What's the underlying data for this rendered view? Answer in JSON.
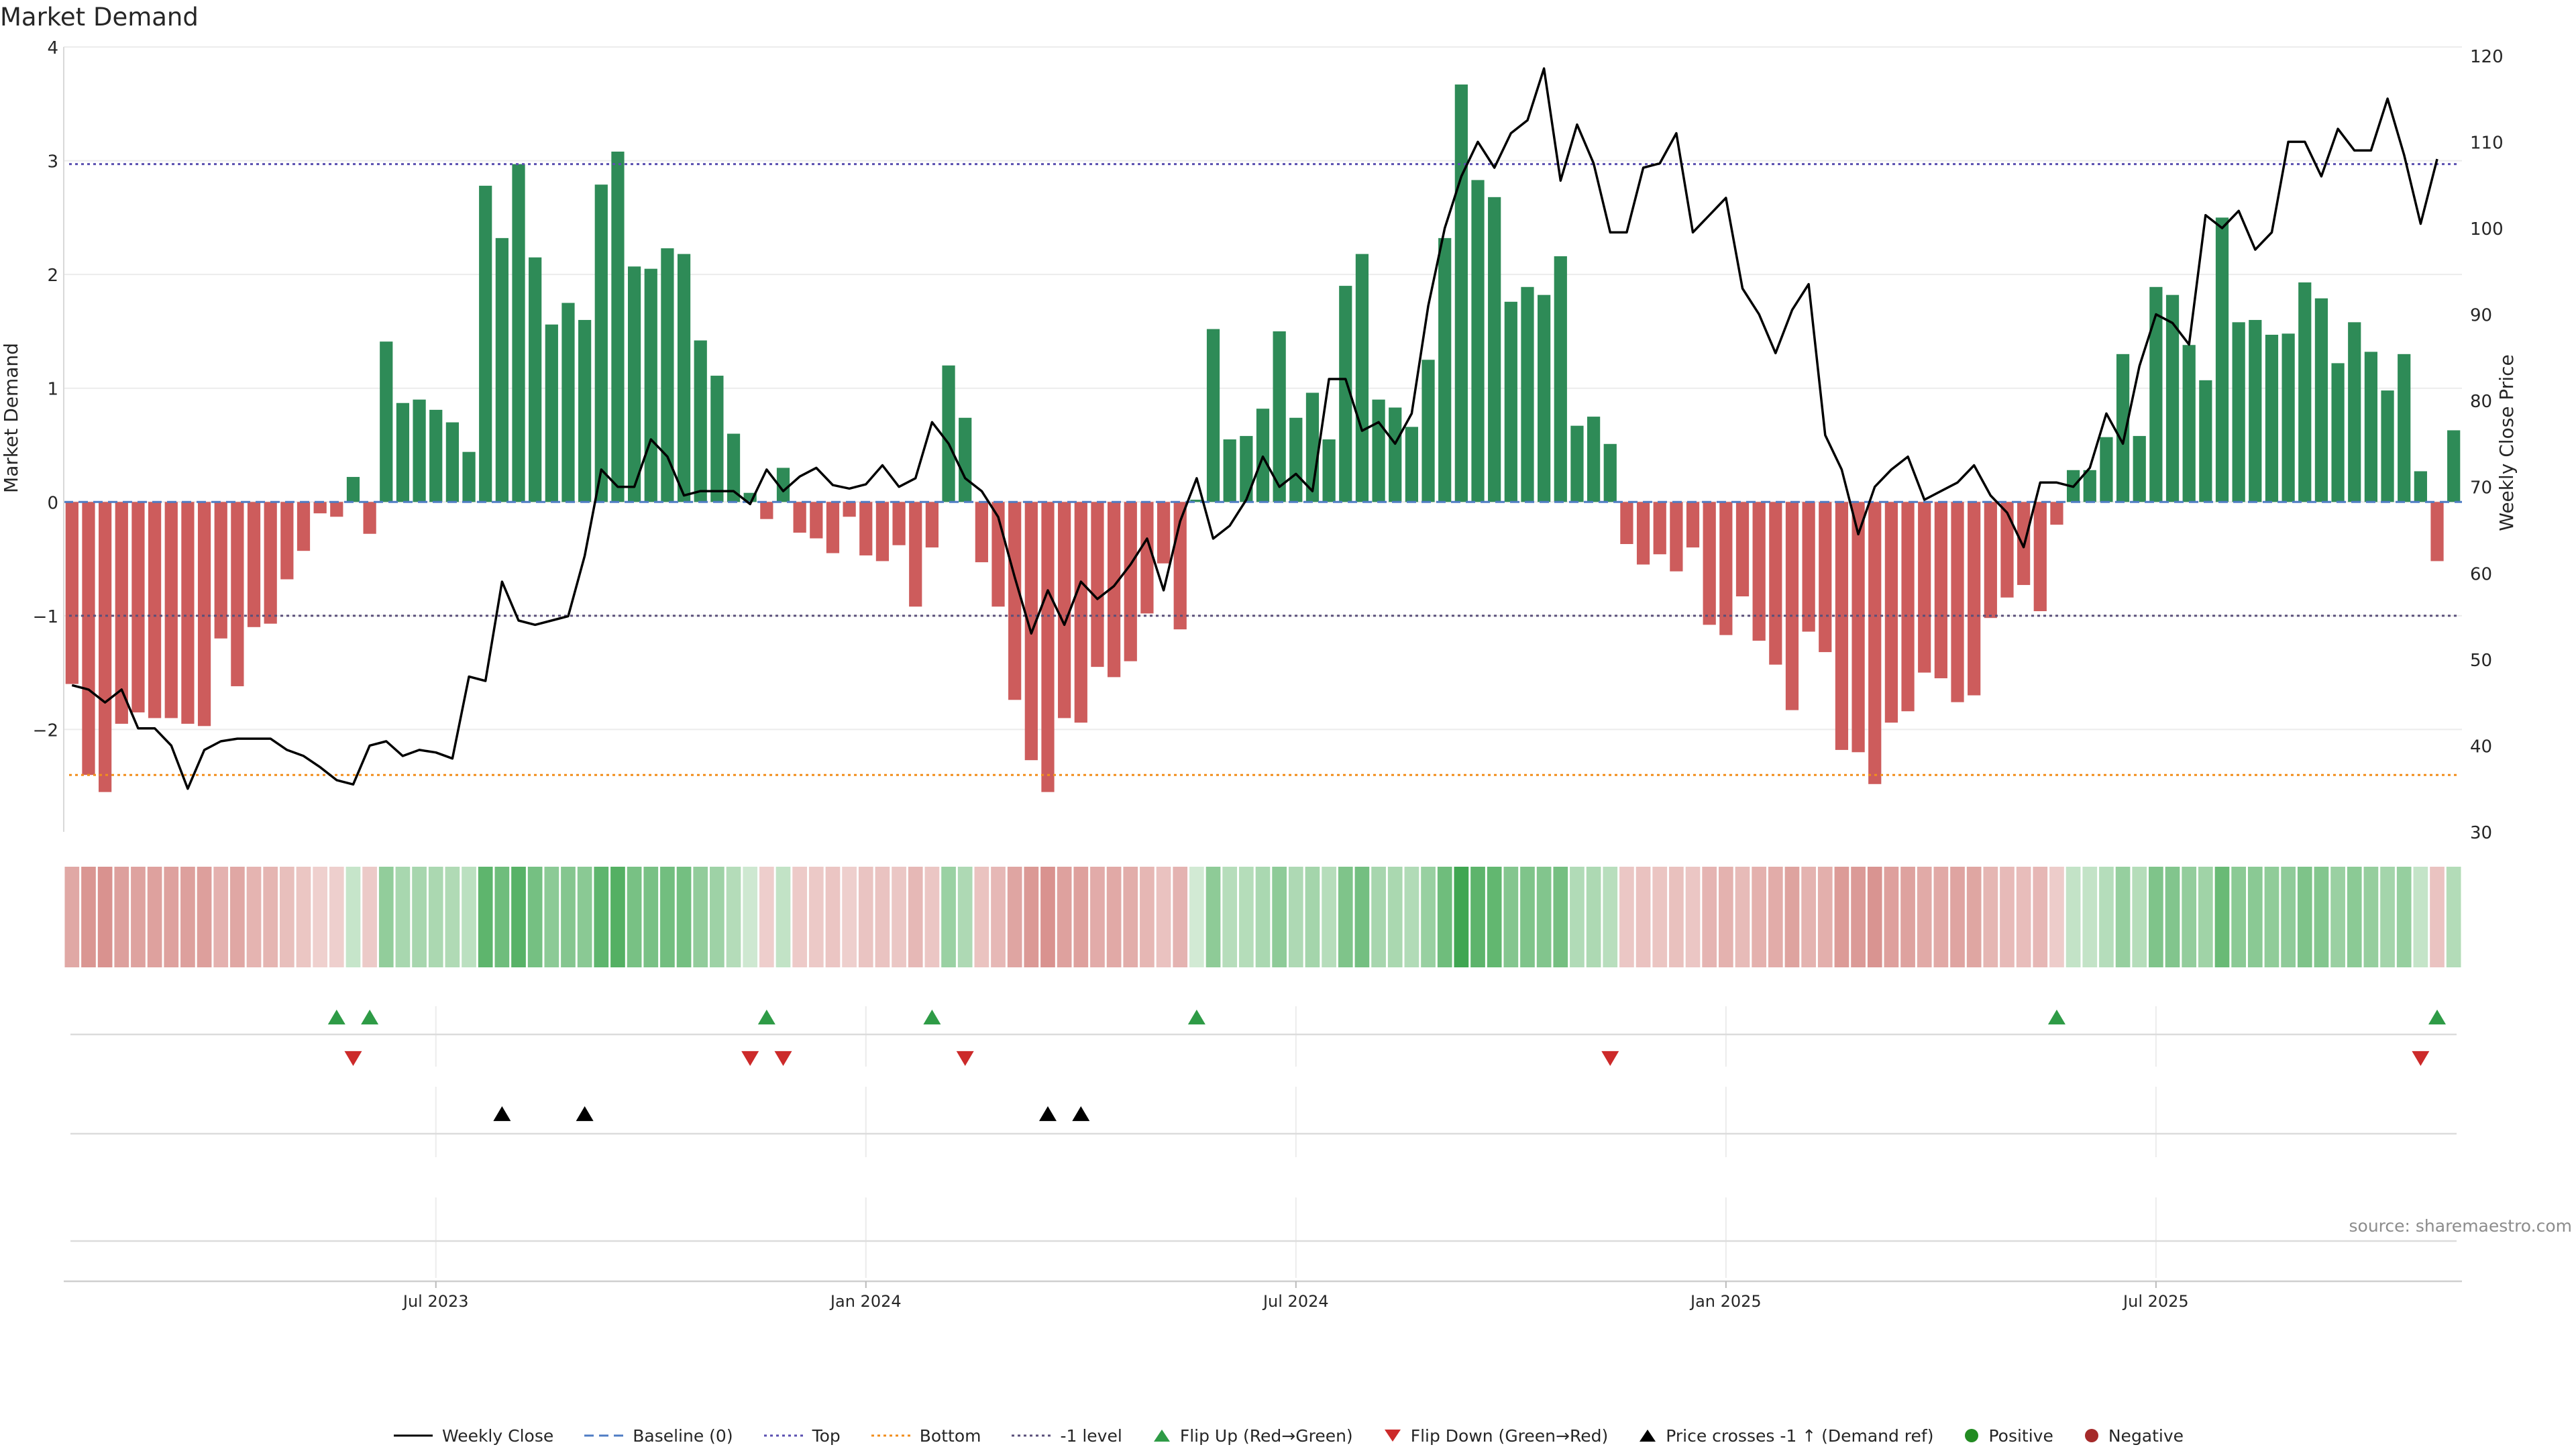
{
  "chart_data": {
    "type": "bar",
    "title": "Market Demand",
    "ylabel": "Market Demand",
    "y2label": "Weekly Close Price",
    "ylim": [
      -2.9,
      4.0
    ],
    "y2lim": [
      30,
      121
    ],
    "yticks": [
      4,
      3,
      2,
      1,
      0,
      -1,
      -2
    ],
    "ytick_labels": [
      "4",
      "3",
      "2",
      "1",
      "0",
      "−1",
      "−2"
    ],
    "y2ticks": [
      120,
      110,
      100,
      90,
      80,
      70,
      60,
      50,
      40,
      30
    ],
    "xticks": [
      {
        "label": "Jul 2023",
        "index": 22
      },
      {
        "label": "Jan 2024",
        "index": 48
      },
      {
        "label": "Jul 2024",
        "index": 74
      },
      {
        "label": "Jan 2025",
        "index": 100
      },
      {
        "label": "Jul 2025",
        "index": 126
      }
    ],
    "ref_lines": [
      {
        "name": "Top",
        "value": 2.97,
        "color": "#5a4fb0"
      },
      {
        "name": "Bottom",
        "value": -2.4,
        "color": "#f28e1c"
      },
      {
        "name": "-1 level",
        "value": -1,
        "color": "#5a4f7a"
      }
    ],
    "demand": [
      -1.6,
      -2.4,
      -2.55,
      -1.95,
      -1.85,
      -1.9,
      -1.9,
      -1.95,
      -1.97,
      -1.2,
      -1.62,
      -1.1,
      -1.07,
      -0.68,
      -0.43,
      -0.1,
      -0.13,
      0.22,
      -0.28,
      1.41,
      0.87,
      0.9,
      0.81,
      0.7,
      0.44,
      2.78,
      2.32,
      2.97,
      2.15,
      1.56,
      1.75,
      1.6,
      2.79,
      3.08,
      2.07,
      2.05,
      2.23,
      2.18,
      1.42,
      1.11,
      0.6,
      0.08,
      -0.15,
      0.3,
      -0.27,
      -0.32,
      -0.45,
      -0.13,
      -0.47,
      -0.52,
      -0.38,
      -0.92,
      -0.4,
      1.2,
      0.74,
      -0.53,
      -0.92,
      -1.74,
      -2.27,
      -2.55,
      -1.9,
      -1.94,
      -1.45,
      -1.54,
      -1.4,
      -0.98,
      -0.54,
      -1.12,
      0.02,
      1.52,
      0.55,
      0.58,
      0.82,
      1.5,
      0.74,
      0.96,
      0.55,
      1.9,
      2.18,
      0.9,
      0.83,
      0.66,
      1.25,
      2.32,
      3.67,
      2.83,
      2.68,
      1.76,
      1.89,
      1.82,
      2.16,
      0.67,
      0.75,
      0.51,
      -0.37,
      -0.55,
      -0.46,
      -0.61,
      -0.4,
      -1.08,
      -1.17,
      -0.83,
      -1.22,
      -1.43,
      -1.83,
      -1.14,
      -1.32,
      -2.18,
      -2.2,
      -2.48,
      -1.94,
      -1.84,
      -1.5,
      -1.55,
      -1.76,
      -1.7,
      -1.02,
      -0.84,
      -0.73,
      -0.96,
      -0.2,
      0.28,
      0.28,
      0.57,
      1.3,
      0.58,
      1.89,
      1.82,
      1.38,
      1.07,
      2.5,
      1.58,
      1.6,
      1.47,
      1.48,
      1.93,
      1.79,
      1.22,
      1.58,
      1.32,
      0.98,
      1.3,
      0.27,
      -0.52,
      0.63
    ],
    "close": [
      47,
      46.5,
      45,
      46.5,
      42,
      42,
      40,
      35,
      39.5,
      40.5,
      40.8,
      40.8,
      40.8,
      39.5,
      38.8,
      37.5,
      36,
      35.5,
      40,
      40.5,
      38.8,
      39.5,
      39.2,
      38.5,
      48,
      47.5,
      59,
      54.5,
      54,
      54.5,
      55,
      62,
      72,
      70,
      70,
      75.5,
      73.5,
      69,
      69.5,
      69.5,
      69.5,
      68,
      72,
      69.5,
      71.2,
      72.2,
      70.2,
      69.8,
      70.3,
      72.5,
      70,
      71,
      77.5,
      75,
      71,
      69.5,
      66.5,
      59.5,
      53,
      58,
      54,
      59,
      57,
      58.5,
      61,
      64,
      58,
      66,
      71,
      64,
      65.5,
      68.5,
      73.5,
      70,
      71.5,
      69.5,
      82.5,
      82.5,
      76.5,
      77.5,
      75,
      78.5,
      91,
      100,
      106,
      110,
      107,
      111,
      112.5,
      118.5,
      105.5,
      112,
      107.5,
      99.5,
      99.5,
      107,
      107.5,
      111,
      99.5,
      101.5,
      103.5,
      93,
      90,
      85.5,
      90.5,
      93.5,
      76,
      72,
      64.5,
      70,
      72,
      73.5,
      68.5,
      69.5,
      70.5,
      72.5,
      69,
      67,
      63,
      70.5,
      70.5,
      70,
      72.2,
      78.5,
      75,
      84,
      90,
      89,
      86.5,
      101.5,
      100,
      102,
      97.5,
      99.5,
      110,
      110,
      106,
      111.5,
      109,
      109,
      115,
      108.5,
      100.5,
      108
    ]
  },
  "markers": {
    "flip_up": [
      16,
      18,
      42,
      52,
      68,
      120,
      143
    ],
    "flip_down": [
      17,
      41,
      43,
      54,
      93,
      142
    ],
    "cross_up": [
      26,
      31,
      59,
      61
    ]
  },
  "colors": {
    "positive": "#2e8b57",
    "negative": "#cd5c5c",
    "flip_up": "#2e9b46",
    "flip_down": "#cc2a2a",
    "cross": "#000000",
    "line": "#000000",
    "dot_positive": "#228b22",
    "dot_negative": "#a52a2a"
  },
  "source_text": "source: sharemaestro.com",
  "legend": [
    {
      "id": "weekly-close",
      "label": "Weekly Close"
    },
    {
      "id": "baseline",
      "label": "Baseline (0)"
    },
    {
      "id": "top",
      "label": "Top"
    },
    {
      "id": "bottom",
      "label": "Bottom"
    },
    {
      "id": "minus1",
      "label": "-1 level"
    },
    {
      "id": "flip-up",
      "label": "Flip Up (Red→Green)"
    },
    {
      "id": "flip-down",
      "label": "Flip Down (Green→Red)"
    },
    {
      "id": "cross",
      "label": "Price crosses -1 ↑ (Demand ref)"
    },
    {
      "id": "positive",
      "label": "Positive"
    },
    {
      "id": "negative",
      "label": "Negative"
    }
  ]
}
